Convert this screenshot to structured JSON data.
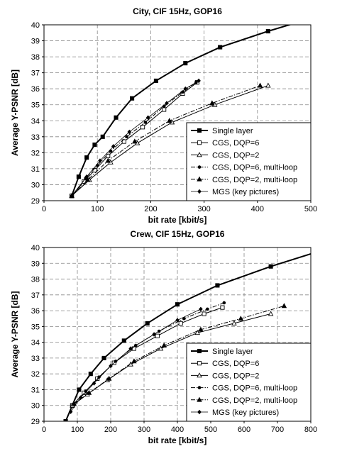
{
  "chart_data": [
    {
      "type": "line",
      "title": "City, CIF 15Hz, GOP16",
      "xlabel": "bit rate [kbit/s]",
      "ylabel": "Average Y-PSNR [dB]",
      "xlim": [
        0,
        500
      ],
      "ylim": [
        29,
        40
      ],
      "xticks": [
        0,
        100,
        200,
        300,
        400,
        500
      ],
      "yticks": [
        29,
        30,
        31,
        32,
        33,
        34,
        35,
        36,
        37,
        38,
        39,
        40
      ],
      "grid": true,
      "legend_position": "lower-right",
      "series": [
        {
          "name": "Single layer",
          "style": "solid-thick",
          "marker": "square-filled",
          "x": [
            52,
            65,
            80,
            95,
            110,
            135,
            165,
            210,
            265,
            330,
            420,
            470
          ],
          "y": [
            29.3,
            30.5,
            31.7,
            32.5,
            33.0,
            34.2,
            35.4,
            36.5,
            37.6,
            38.6,
            39.6,
            40.1
          ]
        },
        {
          "name": "CGS, DQP=6",
          "style": "solid",
          "marker": "square-open",
          "x": [
            52,
            75,
            95,
            120,
            150,
            185,
            225,
            260,
            287
          ],
          "y": [
            29.3,
            30.2,
            30.9,
            31.8,
            32.7,
            33.6,
            34.7,
            35.7,
            36.4
          ]
        },
        {
          "name": "CGS, DQP=2",
          "style": "solid",
          "marker": "triangle-open",
          "x": [
            52,
            85,
            125,
            175,
            240,
            320,
            420
          ],
          "y": [
            29.3,
            30.3,
            31.4,
            32.6,
            33.9,
            35.0,
            36.2
          ]
        },
        {
          "name": "CGS, DQP=6, multi-loop",
          "style": "dash-dot",
          "marker": "circle-filled",
          "x": [
            52,
            78,
            100,
            125,
            155,
            190,
            225,
            260,
            285
          ],
          "y": [
            29.3,
            30.4,
            31.2,
            32.1,
            33.0,
            33.9,
            34.9,
            35.8,
            36.4
          ]
        },
        {
          "name": "CGS, DQP=2, multi-loop",
          "style": "dash-dot",
          "marker": "triangle-filled",
          "x": [
            52,
            82,
            120,
            170,
            235,
            315,
            405
          ],
          "y": [
            29.3,
            30.3,
            31.5,
            32.7,
            34.0,
            35.1,
            36.2
          ]
        },
        {
          "name": "MGS (key pictures)",
          "style": "solid-thin",
          "marker": "diamond-filled",
          "x": [
            52,
            80,
            105,
            130,
            160,
            195,
            230,
            265,
            290
          ],
          "y": [
            29.3,
            30.5,
            31.5,
            32.4,
            33.3,
            34.2,
            35.1,
            36.0,
            36.5
          ]
        }
      ]
    },
    {
      "type": "line",
      "title": "Crew, CIF 15Hz, GOP16",
      "xlabel": "bit rate [kbit/s]",
      "ylabel": "Average Y-PSNR [dB]",
      "xlim": [
        0,
        800
      ],
      "ylim": [
        29,
        40
      ],
      "xticks": [
        0,
        100,
        200,
        300,
        400,
        500,
        600,
        700,
        800
      ],
      "yticks": [
        29,
        30,
        31,
        32,
        33,
        34,
        35,
        36,
        37,
        38,
        39,
        40
      ],
      "grid": true,
      "legend_position": "lower-right",
      "series": [
        {
          "name": "Single layer",
          "style": "solid-thick",
          "marker": "square-filled",
          "x": [
            65,
            85,
            105,
            140,
            180,
            240,
            310,
            400,
            520,
            680,
            800
          ],
          "y": [
            29.0,
            30.0,
            31.0,
            32.0,
            33.0,
            34.1,
            35.2,
            36.4,
            37.6,
            38.8,
            39.6
          ]
        },
        {
          "name": "CGS, DQP=6",
          "style": "solid",
          "marker": "square-open",
          "x": [
            85,
            120,
            160,
            210,
            270,
            340,
            410,
            480,
            535
          ],
          "y": [
            30.0,
            30.8,
            31.7,
            32.7,
            33.6,
            34.4,
            35.2,
            35.8,
            36.2
          ]
        },
        {
          "name": "CGS, DQP=2",
          "style": "solid",
          "marker": "triangle-open",
          "x": [
            85,
            130,
            190,
            260,
            350,
            460,
            570,
            680
          ],
          "y": [
            30.0,
            30.7,
            31.6,
            32.6,
            33.6,
            34.6,
            35.2,
            35.8
          ]
        },
        {
          "name": "CGS, DQP=6, multi-loop",
          "style": "dash-dot",
          "marker": "circle-filled",
          "x": [
            90,
            125,
            165,
            215,
            275,
            345,
            420,
            490,
            540
          ],
          "y": [
            30.1,
            30.9,
            31.8,
            32.8,
            33.8,
            34.7,
            35.5,
            36.1,
            36.5
          ]
        },
        {
          "name": "CGS, DQP=2, multi-loop",
          "style": "dash-dot",
          "marker": "triangle-filled",
          "x": [
            90,
            135,
            195,
            270,
            360,
            470,
            590,
            720
          ],
          "y": [
            30.1,
            30.8,
            31.7,
            32.8,
            33.8,
            34.8,
            35.5,
            36.3
          ]
        },
        {
          "name": "MGS (key pictures)",
          "style": "solid-thin",
          "marker": "diamond-filled",
          "x": [
            80,
            110,
            150,
            200,
            260,
            330,
            400,
            470
          ],
          "y": [
            29.6,
            30.5,
            31.4,
            32.5,
            33.6,
            34.5,
            35.4,
            36.1
          ]
        }
      ]
    }
  ]
}
